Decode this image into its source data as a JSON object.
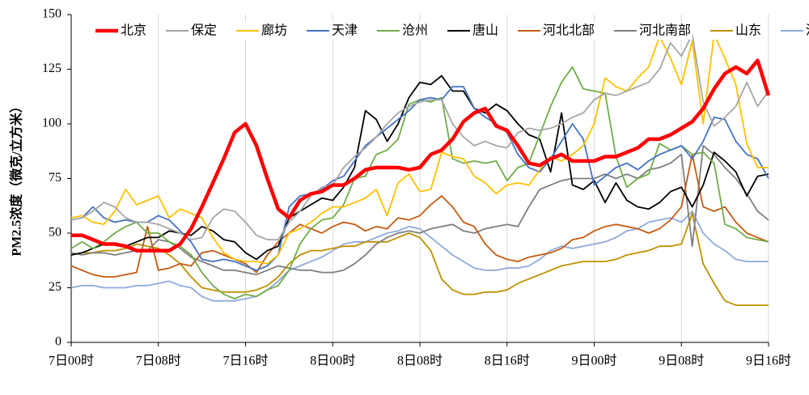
{
  "chart_data": {
    "type": "line",
    "y_label": "PM2.5浓度（微克/立方米）",
    "categories": [
      "7日00时",
      null,
      null,
      null,
      null,
      null,
      null,
      null,
      "7日08时",
      null,
      null,
      null,
      null,
      null,
      null,
      null,
      "7日16时",
      null,
      null,
      null,
      null,
      null,
      null,
      null,
      "8日00时",
      null,
      null,
      null,
      null,
      null,
      null,
      null,
      "8日08时",
      null,
      null,
      null,
      null,
      null,
      null,
      null,
      "8日16时",
      null,
      null,
      null,
      null,
      null,
      null,
      null,
      "9日00时",
      null,
      null,
      null,
      null,
      null,
      null,
      null,
      "9日08时",
      null,
      null,
      null,
      null,
      null,
      null,
      null,
      "9日16时"
    ],
    "ylim": [
      0,
      150
    ],
    "yticks": [
      0,
      25,
      50,
      75,
      100,
      125,
      150
    ],
    "grid": true,
    "legend": "top",
    "series": [
      {
        "name": "北京",
        "color": "#ff0000",
        "values": [
          49,
          49,
          47,
          45,
          45,
          44,
          42,
          42,
          42,
          42,
          45,
          52,
          62,
          73,
          84,
          96,
          100,
          90,
          75,
          61,
          57,
          65,
          68,
          69,
          72,
          72,
          75,
          79,
          80,
          80,
          80,
          79,
          80,
          86,
          88,
          93,
          101,
          105,
          107,
          99,
          97,
          90,
          82,
          81,
          84,
          86,
          83,
          83,
          83,
          85,
          85,
          87,
          89,
          93,
          93,
          95,
          98,
          101,
          107,
          116,
          123,
          126,
          123,
          129,
          113
        ]
      },
      {
        "name": "保定",
        "color": "#a6a6a6",
        "values": [
          56,
          57,
          60,
          64,
          62,
          57,
          55,
          55,
          54,
          52,
          50,
          47,
          48,
          57,
          61,
          60,
          55,
          49,
          47,
          47,
          55,
          60,
          67,
          71,
          72,
          80,
          85,
          89,
          94,
          100,
          105,
          108,
          110,
          111,
          111,
          100,
          94,
          90,
          92,
          90,
          89,
          96,
          98,
          97,
          98,
          100,
          103,
          105,
          111,
          114,
          113,
          115,
          117,
          119,
          125,
          137,
          131,
          141,
          110,
          99,
          103,
          108,
          119,
          108,
          115
        ]
      },
      {
        "name": "廊坊",
        "color": "#ffc000",
        "values": [
          57,
          58,
          55,
          54,
          60,
          70,
          63,
          65,
          67,
          57,
          61,
          59,
          57,
          48,
          41,
          38,
          37,
          37,
          36,
          40,
          50,
          52,
          55,
          59,
          62,
          62,
          64,
          66,
          70,
          58,
          73,
          77,
          69,
          70,
          87,
          85,
          84,
          76,
          73,
          68,
          72,
          73,
          72,
          79,
          85,
          83,
          86,
          90,
          100,
          121,
          117,
          115,
          121,
          126,
          140,
          130,
          118,
          138,
          100,
          141,
          130,
          118,
          91,
          80,
          80
        ]
      },
      {
        "name": "天津",
        "color": "#4472c4",
        "values": [
          56,
          57,
          62,
          57,
          55,
          56,
          55,
          55,
          58,
          56,
          51,
          46,
          38,
          37,
          38,
          37,
          35,
          33,
          35,
          40,
          62,
          67,
          68,
          70,
          74,
          76,
          83,
          90,
          94,
          98,
          102,
          106,
          111,
          112,
          111,
          117,
          117,
          107,
          103,
          100,
          96,
          86,
          80,
          78,
          84,
          92,
          100,
          93,
          72,
          76,
          80,
          82,
          79,
          83,
          86,
          88,
          90,
          84,
          92,
          103,
          102,
          92,
          86,
          84,
          75
        ]
      },
      {
        "name": "沧州",
        "color": "#70ad47",
        "values": [
          43,
          46,
          43,
          46,
          50,
          53,
          55,
          50,
          50,
          46,
          44,
          40,
          32,
          26,
          22,
          20,
          22,
          21,
          24,
          26,
          33,
          45,
          52,
          56,
          57,
          63,
          75,
          76,
          86,
          88,
          93,
          109,
          111,
          110,
          112,
          84,
          82,
          83,
          82,
          83,
          74,
          80,
          82,
          95,
          108,
          119,
          126,
          116,
          115,
          114,
          85,
          71,
          75,
          77,
          91,
          88,
          90,
          86,
          87,
          82,
          54,
          52,
          48,
          47,
          46
        ]
      },
      {
        "name": "唐山",
        "color": "#000000",
        "values": [
          40,
          41,
          43,
          45,
          45,
          44,
          46,
          48,
          48,
          51,
          50,
          49,
          53,
          51,
          47,
          46,
          41,
          38,
          42,
          44,
          57,
          60,
          63,
          66,
          65,
          71,
          80,
          106,
          102,
          92,
          100,
          112,
          119,
          118,
          122,
          115,
          115,
          107,
          105,
          109,
          106,
          100,
          95,
          93,
          78,
          105,
          72,
          70,
          74,
          64,
          73,
          65,
          62,
          61,
          64,
          69,
          71,
          62,
          72,
          87,
          83,
          78,
          67,
          76,
          77
        ]
      },
      {
        "name": "河北北部",
        "color": "#c55a11",
        "values": [
          35,
          33,
          31,
          30,
          30,
          31,
          32,
          53,
          33,
          34,
          36,
          35,
          41,
          42,
          40,
          38,
          36,
          32,
          40,
          46,
          50,
          54,
          52,
          50,
          53,
          55,
          54,
          51,
          53,
          52,
          57,
          56,
          58,
          63,
          67,
          62,
          55,
          53,
          45,
          40,
          38,
          37,
          39,
          40,
          41,
          43,
          47,
          48,
          51,
          53,
          54,
          53,
          52,
          50,
          52,
          56,
          62,
          86,
          62,
          60,
          62,
          55,
          50,
          48,
          46
        ]
      },
      {
        "name": "河北南部",
        "color": "#7f7f7f",
        "values": [
          41,
          40,
          41,
          41,
          40,
          41,
          42,
          42,
          47,
          46,
          43,
          39,
          37,
          35,
          33,
          33,
          32,
          31,
          33,
          35,
          34,
          33,
          33,
          32,
          32,
          33,
          36,
          40,
          45,
          48,
          50,
          51,
          50,
          52,
          53,
          54,
          51,
          50,
          52,
          53,
          54,
          53,
          62,
          70,
          72,
          74,
          75,
          75,
          75,
          77,
          75,
          77,
          75,
          79,
          80,
          82,
          86,
          44,
          90,
          86,
          80,
          75,
          68,
          60,
          56
        ]
      },
      {
        "name": "山东",
        "color": "#bf9000",
        "values": [
          40,
          41,
          41,
          42,
          42,
          43,
          45,
          44,
          43,
          40,
          36,
          30,
          25,
          24,
          23,
          23,
          23,
          24,
          26,
          30,
          36,
          40,
          42,
          42,
          43,
          44,
          44,
          46,
          46,
          46,
          48,
          50,
          48,
          42,
          29,
          24,
          22,
          22,
          23,
          23,
          24,
          27,
          29,
          31,
          33,
          35,
          36,
          37,
          37,
          37,
          38,
          40,
          41,
          42,
          44,
          44,
          45,
          59,
          36,
          27,
          19,
          17,
          17,
          17,
          17
        ]
      },
      {
        "name": "河南",
        "color": "#8faadc",
        "values": [
          25,
          26,
          26,
          25,
          25,
          25,
          26,
          26,
          27,
          28,
          26,
          25,
          21,
          19,
          19,
          19,
          20,
          21,
          24,
          28,
          33,
          35,
          37,
          39,
          42,
          45,
          46,
          46,
          48,
          50,
          51,
          53,
          52,
          48,
          44,
          40,
          37,
          34,
          33,
          33,
          34,
          34,
          35,
          38,
          42,
          44,
          43,
          44,
          45,
          46,
          48,
          51,
          52,
          55,
          56,
          57,
          55,
          60,
          50,
          45,
          42,
          38,
          37,
          37,
          37
        ]
      }
    ]
  }
}
